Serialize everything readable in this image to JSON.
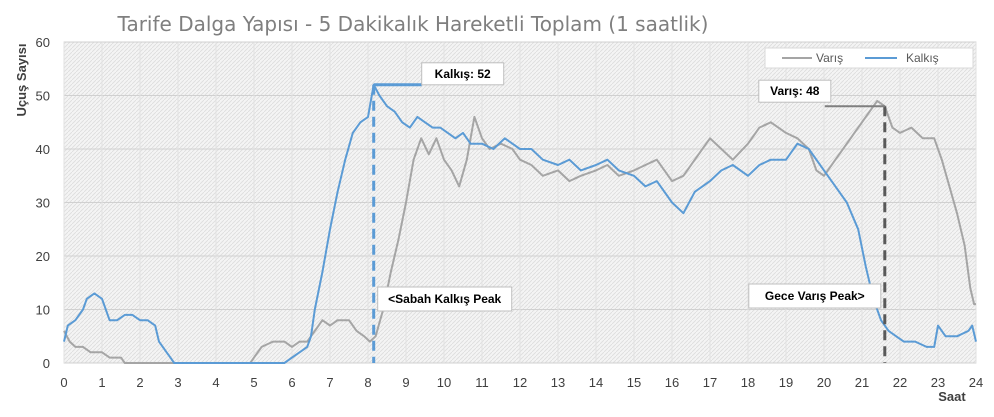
{
  "chart_data": {
    "type": "line",
    "title": "Tarife Dalga Yapısı - 5 Dakikalık Hareketli Toplam (1 saatlik)",
    "xlabel": "Saat",
    "ylabel": "Uçuş Sayısı",
    "xlim": [
      0,
      24
    ],
    "ylim": [
      0,
      60
    ],
    "xticks": [
      "0",
      "1",
      "2",
      "3",
      "4",
      "5",
      "6",
      "7",
      "8",
      "9",
      "10",
      "11",
      "12",
      "13",
      "14",
      "15",
      "16",
      "17",
      "18",
      "19",
      "20",
      "21",
      "22",
      "23",
      "24"
    ],
    "yticks": [
      "0",
      "10",
      "20",
      "30",
      "40",
      "50",
      "60"
    ],
    "grid": true,
    "legend": {
      "position": "top-right",
      "entries": [
        "Varış",
        "Kalkış"
      ]
    },
    "series": [
      {
        "name": "Varış",
        "color": "#a5a5a5",
        "points": [
          [
            0,
            6
          ],
          [
            0.15,
            4
          ],
          [
            0.3,
            3
          ],
          [
            0.5,
            3
          ],
          [
            0.7,
            2
          ],
          [
            1.0,
            2
          ],
          [
            1.2,
            1
          ],
          [
            1.5,
            1
          ],
          [
            1.6,
            0
          ],
          [
            2.0,
            0
          ],
          [
            2.5,
            0
          ],
          [
            3.0,
            0
          ],
          [
            3.5,
            0
          ],
          [
            4.0,
            0
          ],
          [
            4.5,
            0
          ],
          [
            4.9,
            0
          ],
          [
            5.0,
            1
          ],
          [
            5.2,
            3
          ],
          [
            5.5,
            4
          ],
          [
            5.8,
            4
          ],
          [
            6.0,
            3
          ],
          [
            6.2,
            4
          ],
          [
            6.4,
            4
          ],
          [
            6.6,
            6
          ],
          [
            6.8,
            8
          ],
          [
            7.0,
            7
          ],
          [
            7.2,
            8
          ],
          [
            7.5,
            8
          ],
          [
            7.7,
            6
          ],
          [
            7.9,
            5
          ],
          [
            8.05,
            4
          ],
          [
            8.2,
            5
          ],
          [
            8.4,
            10
          ],
          [
            8.6,
            17
          ],
          [
            8.8,
            23
          ],
          [
            9.0,
            30
          ],
          [
            9.2,
            38
          ],
          [
            9.4,
            42
          ],
          [
            9.6,
            39
          ],
          [
            9.8,
            42
          ],
          [
            10.0,
            38
          ],
          [
            10.2,
            36
          ],
          [
            10.4,
            33
          ],
          [
            10.6,
            38
          ],
          [
            10.8,
            46
          ],
          [
            11.0,
            42
          ],
          [
            11.2,
            40
          ],
          [
            11.5,
            41
          ],
          [
            11.8,
            40
          ],
          [
            12.0,
            38
          ],
          [
            12.3,
            37
          ],
          [
            12.6,
            35
          ],
          [
            13.0,
            36
          ],
          [
            13.3,
            34
          ],
          [
            13.6,
            35
          ],
          [
            14.0,
            36
          ],
          [
            14.3,
            37
          ],
          [
            14.6,
            35
          ],
          [
            15.0,
            36
          ],
          [
            15.3,
            37
          ],
          [
            15.6,
            38
          ],
          [
            16.0,
            34
          ],
          [
            16.3,
            35
          ],
          [
            16.6,
            38
          ],
          [
            17.0,
            42
          ],
          [
            17.3,
            40
          ],
          [
            17.6,
            38
          ],
          [
            18.0,
            41
          ],
          [
            18.3,
            44
          ],
          [
            18.6,
            45
          ],
          [
            19.0,
            43
          ],
          [
            19.3,
            42
          ],
          [
            19.6,
            40
          ],
          [
            19.8,
            36
          ],
          [
            20.0,
            35
          ],
          [
            20.3,
            38
          ],
          [
            20.6,
            41
          ],
          [
            20.9,
            44
          ],
          [
            21.2,
            47
          ],
          [
            21.4,
            49
          ],
          [
            21.6,
            48
          ],
          [
            21.8,
            44
          ],
          [
            22.0,
            43
          ],
          [
            22.3,
            44
          ],
          [
            22.6,
            42
          ],
          [
            22.9,
            42
          ],
          [
            23.1,
            38
          ],
          [
            23.3,
            33
          ],
          [
            23.5,
            28
          ],
          [
            23.7,
            22
          ],
          [
            23.85,
            14
          ],
          [
            23.95,
            11
          ],
          [
            24.0,
            11
          ]
        ]
      },
      {
        "name": "Kalkış",
        "color": "#5b9bd5",
        "points": [
          [
            0,
            4
          ],
          [
            0.1,
            7
          ],
          [
            0.3,
            8
          ],
          [
            0.5,
            10
          ],
          [
            0.6,
            12
          ],
          [
            0.8,
            13
          ],
          [
            1.0,
            12
          ],
          [
            1.1,
            10
          ],
          [
            1.2,
            8
          ],
          [
            1.4,
            8
          ],
          [
            1.6,
            9
          ],
          [
            1.8,
            9
          ],
          [
            2.0,
            8
          ],
          [
            2.2,
            8
          ],
          [
            2.4,
            7
          ],
          [
            2.5,
            4
          ],
          [
            2.7,
            2
          ],
          [
            2.8,
            1
          ],
          [
            2.9,
            0
          ],
          [
            3.2,
            0
          ],
          [
            3.5,
            0
          ],
          [
            4.0,
            0
          ],
          [
            4.5,
            0
          ],
          [
            5.0,
            0
          ],
          [
            5.5,
            0
          ],
          [
            5.8,
            0
          ],
          [
            6.0,
            1
          ],
          [
            6.2,
            2
          ],
          [
            6.4,
            3
          ],
          [
            6.5,
            5
          ],
          [
            6.6,
            10
          ],
          [
            6.8,
            17
          ],
          [
            7.0,
            25
          ],
          [
            7.2,
            32
          ],
          [
            7.4,
            38
          ],
          [
            7.6,
            43
          ],
          [
            7.8,
            45
          ],
          [
            8.0,
            46
          ],
          [
            8.15,
            52
          ],
          [
            8.3,
            50
          ],
          [
            8.5,
            48
          ],
          [
            8.7,
            47
          ],
          [
            8.9,
            45
          ],
          [
            9.1,
            44
          ],
          [
            9.3,
            46
          ],
          [
            9.5,
            45
          ],
          [
            9.7,
            44
          ],
          [
            9.9,
            44
          ],
          [
            10.1,
            43
          ],
          [
            10.3,
            42
          ],
          [
            10.5,
            43
          ],
          [
            10.7,
            41
          ],
          [
            11.0,
            41
          ],
          [
            11.3,
            40
          ],
          [
            11.6,
            42
          ],
          [
            12.0,
            40
          ],
          [
            12.3,
            40
          ],
          [
            12.6,
            38
          ],
          [
            13.0,
            37
          ],
          [
            13.3,
            38
          ],
          [
            13.6,
            36
          ],
          [
            14.0,
            37
          ],
          [
            14.3,
            38
          ],
          [
            14.6,
            36
          ],
          [
            15.0,
            35
          ],
          [
            15.3,
            33
          ],
          [
            15.6,
            34
          ],
          [
            16.0,
            30
          ],
          [
            16.3,
            28
          ],
          [
            16.6,
            32
          ],
          [
            17.0,
            34
          ],
          [
            17.3,
            36
          ],
          [
            17.6,
            37
          ],
          [
            18.0,
            35
          ],
          [
            18.3,
            37
          ],
          [
            18.6,
            38
          ],
          [
            19.0,
            38
          ],
          [
            19.3,
            41
          ],
          [
            19.6,
            40
          ],
          [
            20.0,
            36
          ],
          [
            20.3,
            33
          ],
          [
            20.6,
            30
          ],
          [
            20.9,
            25
          ],
          [
            21.1,
            18
          ],
          [
            21.3,
            12
          ],
          [
            21.5,
            8
          ],
          [
            21.7,
            6
          ],
          [
            21.9,
            5
          ],
          [
            22.1,
            4
          ],
          [
            22.4,
            4
          ],
          [
            22.7,
            3
          ],
          [
            22.9,
            3
          ],
          [
            23.0,
            7
          ],
          [
            23.2,
            5
          ],
          [
            23.5,
            5
          ],
          [
            23.8,
            6
          ],
          [
            23.9,
            7
          ],
          [
            24.0,
            4
          ]
        ]
      }
    ],
    "annotations": [
      {
        "text": "Kalkış: 52",
        "x": 8.15,
        "y": 52,
        "color": "#5b9bd5"
      },
      {
        "text": "Varış: 48",
        "x": 21.6,
        "y": 48,
        "color": "#7f7f7f"
      },
      {
        "text": "<Sabah Kalkış Peak",
        "x": 8.15,
        "color": "#5b9bd5"
      },
      {
        "text": "Gece Varış Peak>",
        "x": 21.6,
        "color": "#595959"
      }
    ]
  }
}
